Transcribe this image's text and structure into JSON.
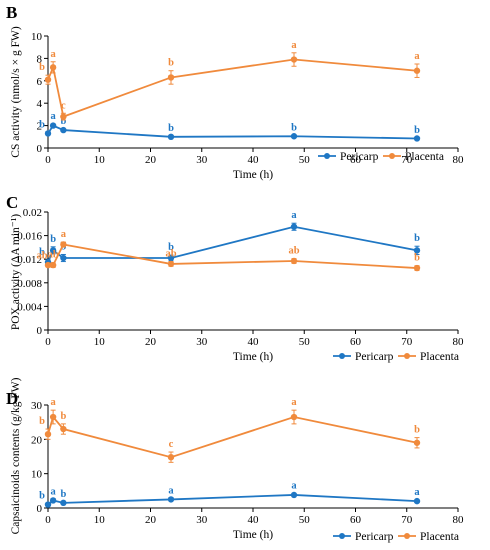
{
  "colors": {
    "pericarp": "#1f77c4",
    "placenta": "#f08a3c"
  },
  "chart_data": [
    {
      "type": "line",
      "panel_label": "B",
      "xlabel": "Time (h)",
      "ylabel": "CS activity (nmol/s × g FW)",
      "xlim": [
        0,
        80
      ],
      "ylim": [
        0,
        10
      ],
      "x_ticks": [
        "0",
        "10",
        "20",
        "30",
        "40",
        "50",
        "60",
        "70",
        "80"
      ],
      "y_ticks": [
        "0",
        "2",
        "4",
        "6",
        "8",
        "10"
      ],
      "x": [
        0,
        1,
        3,
        24,
        48,
        72
      ],
      "series": [
        {
          "name": "Pericarp",
          "color": "#1f77c4",
          "values": [
            1.3,
            2.0,
            1.6,
            1.0,
            1.05,
            0.85
          ],
          "errors": [
            0.1,
            0.15,
            0.1,
            0.05,
            0.05,
            0.05
          ],
          "letters": [
            "b",
            "a",
            "b",
            "b",
            "b",
            "b"
          ]
        },
        {
          "name": "Placenta",
          "color": "#f08a3c",
          "values": [
            6.1,
            7.2,
            2.8,
            6.3,
            7.9,
            6.9
          ],
          "errors": [
            0.4,
            0.5,
            0.3,
            0.6,
            0.6,
            0.6
          ],
          "letters": [
            "b",
            "a",
            "c",
            "b",
            "a",
            "a"
          ]
        }
      ],
      "legend": [
        "Pericarp",
        "Placenta"
      ],
      "legend_position": "bottom-right"
    },
    {
      "type": "line",
      "panel_label": "C",
      "xlabel": "Time (h)",
      "ylabel": "POX activity (ΔA min⁻¹)",
      "xlim": [
        0,
        80
      ],
      "ylim": [
        0,
        0.02
      ],
      "x_ticks": [
        "0",
        "10",
        "20",
        "30",
        "40",
        "50",
        "60",
        "70",
        "80"
      ],
      "y_ticks": [
        "0",
        "0.004",
        "0.008",
        "0.012",
        "0.016",
        "0.02"
      ],
      "x": [
        0,
        1,
        3,
        24,
        48,
        72
      ],
      "series": [
        {
          "name": "Pericarp",
          "color": "#1f77c4",
          "values": [
            0.0115,
            0.0135,
            0.0122,
            0.0122,
            0.0175,
            0.0135
          ],
          "errors": [
            0.0004,
            0.0006,
            0.0006,
            0.0005,
            0.0006,
            0.0007
          ],
          "letters": [
            "b",
            "b",
            "b",
            "b",
            "a",
            "b"
          ]
        },
        {
          "name": "Placenta",
          "color": "#f08a3c",
          "values": [
            0.011,
            0.011,
            0.0145,
            0.0112,
            0.0117,
            0.0105
          ],
          "errors": [
            0.0003,
            0.0004,
            0.0004,
            0.0004,
            0.0004,
            0.0004
          ],
          "letters": [
            "ab",
            "ab",
            "a",
            "ab",
            "ab",
            "b"
          ]
        }
      ],
      "legend": [
        "Pericarp",
        "Placenta"
      ],
      "legend_position": "bottom-right"
    },
    {
      "type": "line",
      "panel_label": "D",
      "xlabel": "Time (h)",
      "ylabel": "Capsaicinoids contents (g/kg FW)",
      "xlim": [
        0,
        80
      ],
      "ylim": [
        0,
        30
      ],
      "x_ticks": [
        "0",
        "10",
        "20",
        "30",
        "40",
        "50",
        "60",
        "70",
        "80"
      ],
      "y_ticks": [
        "0",
        "10",
        "20",
        "30"
      ],
      "x": [
        0,
        1,
        3,
        24,
        48,
        72
      ],
      "series": [
        {
          "name": "Pericarp",
          "color": "#1f77c4",
          "values": [
            1.0,
            2.2,
            1.5,
            2.5,
            3.8,
            2.0
          ],
          "errors": [
            0.3,
            0.3,
            0.3,
            0.3,
            0.4,
            0.3
          ],
          "letters": [
            "b",
            "a",
            "b",
            "a",
            "a",
            "a"
          ]
        },
        {
          "name": "Placenta",
          "color": "#f08a3c",
          "values": [
            21.5,
            26.5,
            23.0,
            14.8,
            26.5,
            19.0
          ],
          "errors": [
            1.5,
            2.0,
            1.5,
            1.5,
            2.0,
            1.5
          ],
          "letters": [
            "b",
            "a",
            "b",
            "c",
            "a",
            "b"
          ]
        }
      ],
      "legend": [
        "Pericarp",
        "Placenta"
      ],
      "legend_position": "bottom-right"
    }
  ]
}
